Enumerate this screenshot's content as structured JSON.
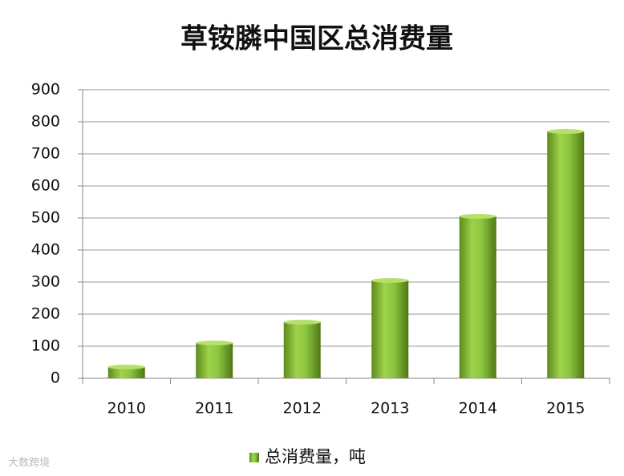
{
  "chart_data": {
    "type": "bar",
    "title": "草铵膦中国区总消费量",
    "categories": [
      "2010",
      "2011",
      "2012",
      "2013",
      "2014",
      "2015"
    ],
    "series": [
      {
        "name": "总消费量，吨",
        "color": "#8cc63f",
        "values": [
          35,
          110,
          175,
          305,
          505,
          770
        ]
      }
    ],
    "ylim": [
      0,
      900
    ],
    "yticks": [
      0,
      100,
      200,
      300,
      400,
      500,
      600,
      700,
      800,
      900
    ],
    "grid": true,
    "legend": "bottom",
    "watermark": "大数跨境"
  }
}
